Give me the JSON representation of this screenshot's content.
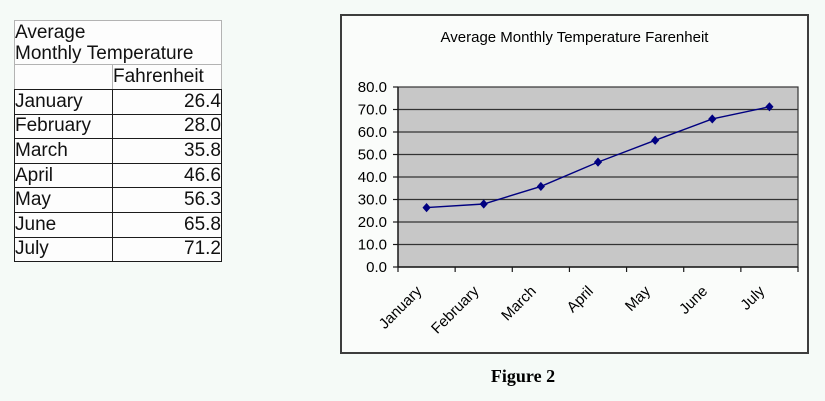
{
  "table": {
    "title": "Average Monthly Temperature",
    "value_column_header": "Fahrenheit",
    "rows": [
      {
        "month": "January",
        "value": "26.4"
      },
      {
        "month": "February",
        "value": "28.0"
      },
      {
        "month": "March",
        "value": "35.8"
      },
      {
        "month": "April",
        "value": "46.6"
      },
      {
        "month": "May",
        "value": "56.3"
      },
      {
        "month": "June",
        "value": "65.8"
      },
      {
        "month": "July",
        "value": "71.2"
      }
    ]
  },
  "chart_data": {
    "type": "line",
    "title": "Average Monthly Temperature Farenheit",
    "categories": [
      "January",
      "February",
      "March",
      "April",
      "May",
      "June",
      "July"
    ],
    "series": [
      {
        "name": "Fahrenheit",
        "values": [
          26.4,
          28.0,
          35.8,
          46.6,
          56.3,
          65.8,
          71.2
        ]
      }
    ],
    "xlabel": "",
    "ylabel": "",
    "ylim": [
      0,
      80
    ],
    "ytick_step": 10,
    "ytick_labels": [
      "0.0",
      "10.0",
      "20.0",
      "30.0",
      "40.0",
      "50.0",
      "60.0",
      "70.0",
      "80.0"
    ],
    "x_label_rotation": -45,
    "grid": true,
    "legend": "none",
    "marker": "diamond",
    "line_color": "#000080",
    "plot_bg_color": "#c7c7c7",
    "grid_color": "#333333",
    "axis_color": "#1a1a1a"
  },
  "caption": "Figure 2"
}
